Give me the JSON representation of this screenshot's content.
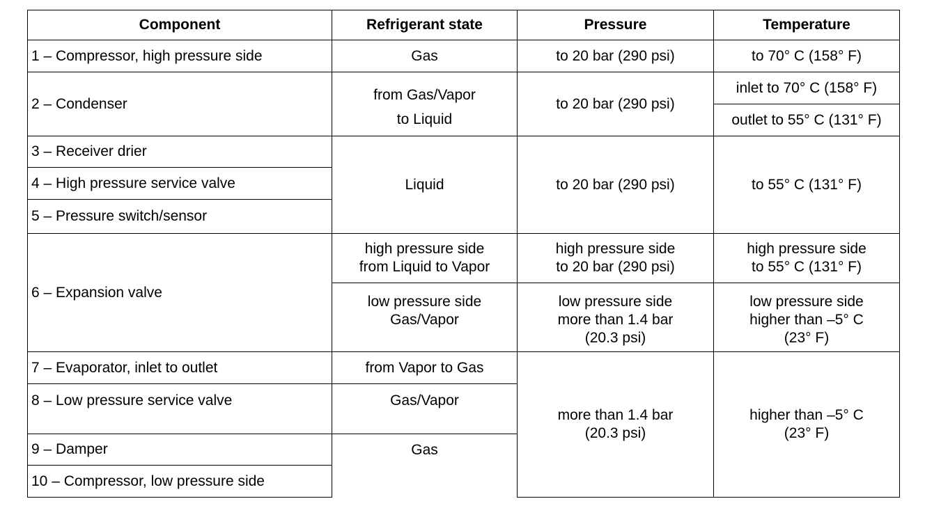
{
  "headers": {
    "component": "Component",
    "refrigerant_state": "Refrigerant state",
    "pressure": "Pressure",
    "temperature": "Temperature"
  },
  "rows": {
    "r1": {
      "component": "1 – Compressor, high pressure side",
      "state": "Gas",
      "pressure": "to 20 bar (290 psi)",
      "temperature": "to 70° C (158° F)"
    },
    "r2": {
      "component": "2 – Condenser",
      "state_line1": "from Gas/Vapor",
      "state_line2": "to Liquid",
      "pressure": "to 20 bar (290 psi)",
      "temperature_inlet": "inlet to 70° C (158° F)",
      "temperature_outlet": "outlet to 55° C (131° F)"
    },
    "r3": {
      "component": "3 – Receiver drier"
    },
    "r4": {
      "component": "4 – High pressure service valve"
    },
    "r5": {
      "component": "5 – Pressure switch/sensor"
    },
    "group_3_5": {
      "state": "Liquid",
      "pressure": "to 20 bar (290 psi)",
      "temperature": "to 55° C (131° F)"
    },
    "r6": {
      "component": "6 – Expansion valve",
      "high": {
        "state_line1": "high pressure side",
        "state_line2": "from Liquid to Vapor",
        "pressure_line1": "high pressure side",
        "pressure_line2": "to 20 bar (290 psi)",
        "temperature_line1": "high pressure side",
        "temperature_line2": "to 55° C (131° F)"
      },
      "low": {
        "state_line1": "low pressure side",
        "state_line2": "Gas/Vapor",
        "pressure_line1": "low pressure side",
        "pressure_line2": "more than 1.4 bar",
        "pressure_line3": "(20.3 psi)",
        "temperature_line1": "low pressure side",
        "temperature_line2": "higher than –5° C",
        "temperature_line3": "(23° F)"
      }
    },
    "r7": {
      "component": "7 – Evaporator, inlet to outlet",
      "state": "from Vapor to Gas"
    },
    "r8": {
      "component": "8 – Low pressure service valve",
      "state": "Gas/Vapor"
    },
    "r9": {
      "component": "9 – Damper",
      "state": "Gas"
    },
    "r10": {
      "component": "10 – Compressor, low pressure side"
    },
    "group_7_10": {
      "pressure_line1": "more than 1.4 bar",
      "pressure_line2": "(20.3 psi)",
      "temperature_line1": "higher than –5° C",
      "temperature_line2": "(23° F)"
    }
  }
}
